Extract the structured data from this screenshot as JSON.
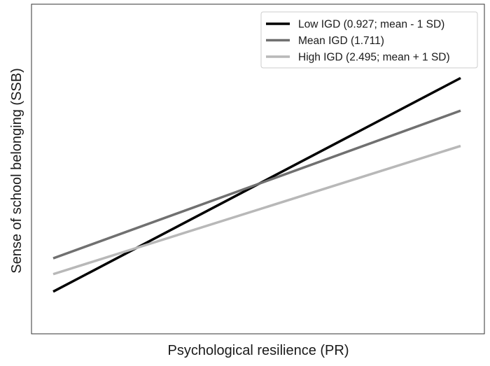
{
  "chart_data": {
    "type": "line",
    "title": "",
    "xlabel": "Psychological resilience (PR)",
    "ylabel": "Sense of school belonging (SSB)",
    "x_ticks_shown": false,
    "y_ticks_shown": false,
    "grid": false,
    "legend_position": "top-right",
    "x": [
      0,
      1
    ],
    "ylim": [
      0,
      1
    ],
    "series": [
      {
        "name": "Low IGD (0.927; mean - 1 SD)",
        "color": "#000000",
        "values": [
          0.128,
          0.776
        ]
      },
      {
        "name": "Mean IGD (1.711)",
        "color": "#707070",
        "values": [
          0.229,
          0.677
        ]
      },
      {
        "name": "High IGD (2.495; mean + 1 SD)",
        "color": "#b8b8b8",
        "values": [
          0.181,
          0.57
        ]
      }
    ]
  }
}
